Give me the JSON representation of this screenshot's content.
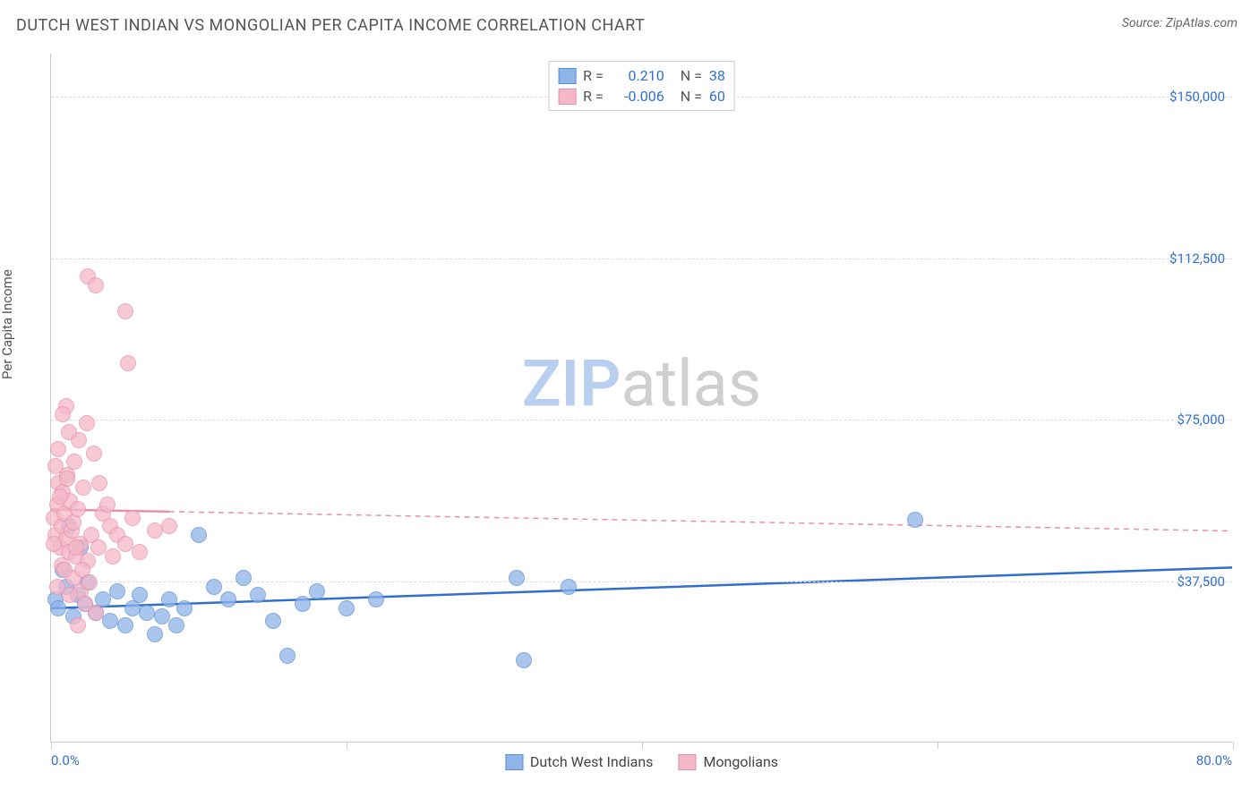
{
  "header": {
    "title": "DUTCH WEST INDIAN VS MONGOLIAN PER CAPITA INCOME CORRELATION CHART",
    "source": "Source: ZipAtlas.com"
  },
  "watermark": {
    "zip": "ZIP",
    "atlas": "atlas",
    "zip_color": "#b9cfef",
    "atlas_color": "#cfcfcf"
  },
  "chart": {
    "type": "scatter",
    "y_label": "Per Capita Income",
    "background_color": "#ffffff",
    "grid_color": "#dddddd",
    "axis_color": "#cccccc",
    "xlim": [
      0,
      80
    ],
    "ylim": [
      0,
      160000
    ],
    "y_ticks": [
      {
        "v": 37500,
        "label": "$37,500",
        "color": "#2f6fd0"
      },
      {
        "v": 75000,
        "label": "$75,000",
        "color": "#2f6fd0"
      },
      {
        "v": 112500,
        "label": "$112,500",
        "color": "#2f6fd0"
      },
      {
        "v": 150000,
        "label": "$150,000",
        "color": "#2f6fd0"
      }
    ],
    "x_ticks_pct": [
      0,
      20,
      40,
      60,
      80
    ],
    "x_range_labels": [
      {
        "pct": 0,
        "text": "0.0%",
        "align": "left",
        "color": "#2f6fd0"
      },
      {
        "pct": 80,
        "text": "80.0%",
        "align": "right",
        "color": "#2f6fd0"
      }
    ],
    "point_radius": 9,
    "point_border_width": 1,
    "point_fill_opacity": 0.35,
    "series": [
      {
        "name": "Dutch West Indians",
        "color_fill": "#8fb4e8",
        "color_border": "#5a8fd6",
        "r_label": "R =",
        "r_value": "0.210",
        "n_label": "N =",
        "n_value": "38",
        "trend": {
          "y1": 31000,
          "y2": 40500,
          "width": 2.5,
          "dash": "none",
          "color": "#2f6fd0"
        },
        "points": [
          [
            0.3,
            33000
          ],
          [
            0.5,
            31000
          ],
          [
            0.8,
            40000
          ],
          [
            1.0,
            36000
          ],
          [
            1.2,
            50000
          ],
          [
            1.5,
            29000
          ],
          [
            1.8,
            34000
          ],
          [
            2.0,
            45000
          ],
          [
            2.3,
            32000
          ],
          [
            2.5,
            37000
          ],
          [
            3.0,
            30000
          ],
          [
            3.5,
            33000
          ],
          [
            4.0,
            28000
          ],
          [
            4.5,
            35000
          ],
          [
            5.0,
            27000
          ],
          [
            5.5,
            31000
          ],
          [
            6.0,
            34000
          ],
          [
            6.5,
            30000
          ],
          [
            7.0,
            25000
          ],
          [
            7.5,
            29000
          ],
          [
            8.0,
            33000
          ],
          [
            8.5,
            27000
          ],
          [
            9.0,
            31000
          ],
          [
            10.0,
            48000
          ],
          [
            11.0,
            36000
          ],
          [
            12.0,
            33000
          ],
          [
            13.0,
            38000
          ],
          [
            14.0,
            34000
          ],
          [
            15.0,
            28000
          ],
          [
            16.0,
            20000
          ],
          [
            17.0,
            32000
          ],
          [
            18.0,
            35000
          ],
          [
            20.0,
            31000
          ],
          [
            22.0,
            33000
          ],
          [
            31.5,
            38000
          ],
          [
            32.0,
            19000
          ],
          [
            58.5,
            51500
          ],
          [
            35.0,
            36000
          ]
        ]
      },
      {
        "name": "Mongolians",
        "color_fill": "#f4b8c8",
        "color_border": "#e890aa",
        "r_label": "R =",
        "r_value": "-0.006",
        "n_label": "N =",
        "n_value": "60",
        "trend": {
          "y1": 54000,
          "y2": 49000,
          "width": 1.5,
          "dash": "6,5",
          "color": "#e890aa",
          "solid_until_pct": 8
        },
        "points": [
          [
            0.2,
            52000
          ],
          [
            0.3,
            48000
          ],
          [
            0.4,
            55000
          ],
          [
            0.5,
            60000
          ],
          [
            0.6,
            45000
          ],
          [
            0.7,
            50000
          ],
          [
            0.8,
            58000
          ],
          [
            0.9,
            53000
          ],
          [
            1.0,
            47000
          ],
          [
            1.1,
            62000
          ],
          [
            1.2,
            44000
          ],
          [
            1.3,
            56000
          ],
          [
            1.4,
            49000
          ],
          [
            1.5,
            51000
          ],
          [
            1.6,
            65000
          ],
          [
            1.7,
            43000
          ],
          [
            1.8,
            54000
          ],
          [
            1.9,
            70000
          ],
          [
            2.0,
            46000
          ],
          [
            2.2,
            59000
          ],
          [
            2.4,
            74000
          ],
          [
            2.5,
            42000
          ],
          [
            2.7,
            48000
          ],
          [
            2.9,
            67000
          ],
          [
            3.0,
            30000
          ],
          [
            1.0,
            78000
          ],
          [
            1.2,
            72000
          ],
          [
            0.8,
            76000
          ],
          [
            0.5,
            68000
          ],
          [
            0.3,
            64000
          ],
          [
            2.5,
            108000
          ],
          [
            3.0,
            106000
          ],
          [
            5.0,
            100000
          ],
          [
            5.2,
            88000
          ],
          [
            0.7,
            41000
          ],
          [
            1.5,
            38000
          ],
          [
            2.0,
            35000
          ],
          [
            3.2,
            45000
          ],
          [
            3.5,
            53000
          ],
          [
            4.0,
            50000
          ],
          [
            4.5,
            48000
          ],
          [
            5.0,
            46000
          ],
          [
            5.5,
            52000
          ],
          [
            6.0,
            44000
          ],
          [
            7.0,
            49000
          ],
          [
            8.0,
            50000
          ],
          [
            1.8,
            27000
          ],
          [
            2.3,
            32000
          ],
          [
            0.4,
            36000
          ],
          [
            0.9,
            40000
          ],
          [
            1.3,
            34000
          ],
          [
            3.8,
            55000
          ],
          [
            0.6,
            57000
          ],
          [
            1.1,
            61000
          ],
          [
            2.1,
            40000
          ],
          [
            2.6,
            37000
          ],
          [
            0.2,
            46000
          ],
          [
            4.2,
            43000
          ],
          [
            1.7,
            45000
          ],
          [
            3.3,
            60000
          ]
        ]
      }
    ],
    "legend_top": {
      "r_color": "#2f6fd0",
      "n_color": "#2f6fd0",
      "label_color": "#555555"
    },
    "legend_bottom_color": "#444444"
  }
}
